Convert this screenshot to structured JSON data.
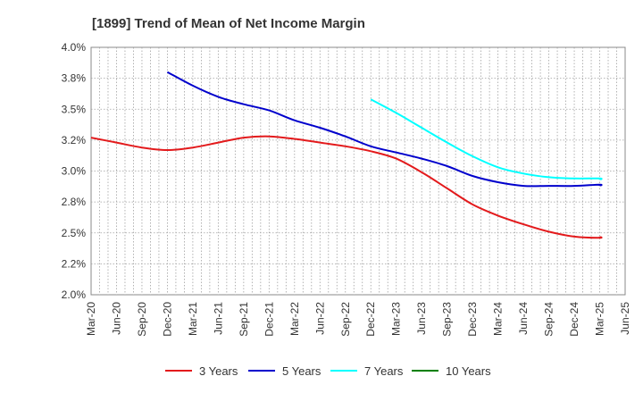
{
  "chart_data": {
    "type": "line",
    "title": "[1899]  Trend of Mean of Net Income Margin",
    "xlabel": "",
    "ylabel": "",
    "x_ticks": [
      "Mar-20",
      "Jun-20",
      "Sep-20",
      "Dec-20",
      "Mar-21",
      "Jun-21",
      "Sep-21",
      "Dec-21",
      "Mar-22",
      "Jun-22",
      "Sep-22",
      "Dec-22",
      "Mar-23",
      "Jun-23",
      "Sep-23",
      "Dec-23",
      "Mar-24",
      "Jun-24",
      "Sep-24",
      "Dec-24",
      "Mar-25",
      "Jun-25"
    ],
    "y_ticks": [
      "2.0%",
      "2.2%",
      "2.5%",
      "2.8%",
      "3.0%",
      "3.2%",
      "3.5%",
      "3.8%",
      "4.0%"
    ],
    "ylim": [
      2.0,
      4.0
    ],
    "grid": true,
    "legend_position": "bottom",
    "series": [
      {
        "name": "3 Years",
        "color": "#e31a1c",
        "points": [
          [
            "Mar-20",
            3.27
          ],
          [
            "Jun-20",
            3.23
          ],
          [
            "Sep-20",
            3.19
          ],
          [
            "Dec-20",
            3.17
          ],
          [
            "Mar-21",
            3.19
          ],
          [
            "Jun-21",
            3.23
          ],
          [
            "Sep-21",
            3.27
          ],
          [
            "Dec-21",
            3.28
          ],
          [
            "Mar-22",
            3.26
          ],
          [
            "Jun-22",
            3.23
          ],
          [
            "Sep-22",
            3.2
          ],
          [
            "Dec-22",
            3.16
          ],
          [
            "Mar-23",
            3.1
          ],
          [
            "Jun-23",
            2.99
          ],
          [
            "Sep-23",
            2.86
          ],
          [
            "Dec-23",
            2.73
          ],
          [
            "Mar-24",
            2.64
          ],
          [
            "Jun-24",
            2.57
          ],
          [
            "Sep-24",
            2.51
          ],
          [
            "Dec-24",
            2.47
          ],
          [
            "Mar-25",
            2.46
          ],
          [
            "Mar-25",
            2.47
          ]
        ]
      },
      {
        "name": "5 Years",
        "color": "#0000cc",
        "points": [
          [
            "Dec-20",
            3.8
          ],
          [
            "Mar-21",
            3.69
          ],
          [
            "Jun-21",
            3.6
          ],
          [
            "Sep-21",
            3.54
          ],
          [
            "Dec-21",
            3.49
          ],
          [
            "Mar-22",
            3.41
          ],
          [
            "Jun-22",
            3.35
          ],
          [
            "Sep-22",
            3.28
          ],
          [
            "Dec-22",
            3.2
          ],
          [
            "Mar-23",
            3.15
          ],
          [
            "Jun-23",
            3.1
          ],
          [
            "Sep-23",
            3.04
          ],
          [
            "Dec-23",
            2.96
          ],
          [
            "Mar-24",
            2.91
          ],
          [
            "Jun-24",
            2.88
          ],
          [
            "Sep-24",
            2.88
          ],
          [
            "Dec-24",
            2.88
          ],
          [
            "Mar-25",
            2.89
          ],
          [
            "Mar-25",
            2.88
          ]
        ]
      },
      {
        "name": "7 Years",
        "color": "#00ffff",
        "points": [
          [
            "Dec-22",
            3.58
          ],
          [
            "Mar-23",
            3.47
          ],
          [
            "Jun-23",
            3.35
          ],
          [
            "Sep-23",
            3.23
          ],
          [
            "Dec-23",
            3.12
          ],
          [
            "Mar-24",
            3.03
          ],
          [
            "Jun-24",
            2.98
          ],
          [
            "Sep-24",
            2.95
          ],
          [
            "Dec-24",
            2.94
          ],
          [
            "Mar-25",
            2.94
          ],
          [
            "Mar-25",
            2.93
          ]
        ]
      },
      {
        "name": "10 Years",
        "color": "#008000",
        "points": []
      }
    ]
  }
}
